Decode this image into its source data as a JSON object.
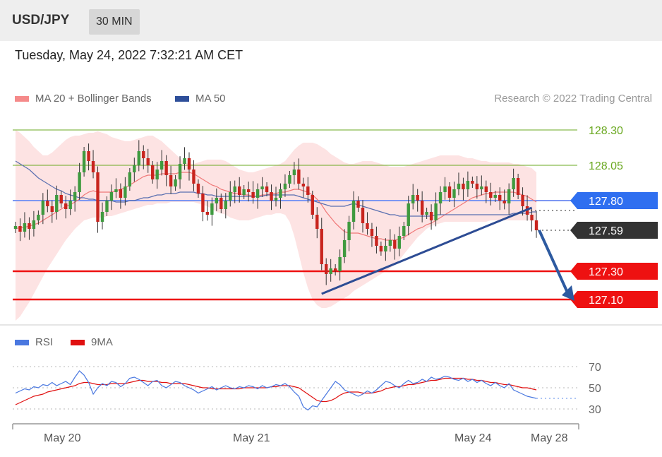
{
  "header": {
    "symbol": "USD/JPY",
    "timeframe": "30 MIN"
  },
  "timestamp": "Tuesday, May 24, 2022 7:32:21 AM CET",
  "legend": {
    "ma20": "MA 20 + Bollinger Bands",
    "ma50": "MA 50",
    "credit": "Research © 2022 Trading Central",
    "rsi": "RSI",
    "rsi_ma": "9MA"
  },
  "chart_data": [
    {
      "type": "line",
      "title": "USD/JPY 30 MIN",
      "y_range": [
        126.95,
        128.42
      ],
      "levels": [
        {
          "value": 128.3,
          "label": "128.30",
          "color": "#6aa820",
          "kind": "resistance-thin"
        },
        {
          "value": 128.05,
          "label": "128.05",
          "color": "#6aa820",
          "kind": "resistance-thin"
        },
        {
          "value": 127.8,
          "label": "127.80",
          "color": "#2f6ff0",
          "kind": "pivot"
        },
        {
          "value": 127.59,
          "label": "127.59",
          "color": "#333333",
          "kind": "last-price"
        },
        {
          "value": 127.3,
          "label": "127.30",
          "color": "#ee1111",
          "kind": "support"
        },
        {
          "value": 127.1,
          "label": "127.10",
          "color": "#ee1111",
          "kind": "support"
        }
      ],
      "close": [
        127.62,
        127.58,
        127.64,
        127.6,
        127.66,
        127.7,
        127.8,
        127.76,
        127.72,
        127.84,
        127.78,
        127.74,
        127.8,
        127.86,
        128.0,
        128.15,
        128.08,
        128.0,
        127.65,
        127.72,
        127.8,
        127.86,
        127.88,
        127.82,
        127.9,
        128.0,
        128.05,
        128.15,
        128.1,
        128.05,
        127.95,
        128.02,
        128.08,
        127.98,
        127.9,
        127.95,
        128.06,
        128.1,
        128.02,
        127.92,
        127.85,
        127.72,
        127.7,
        127.78,
        127.82,
        127.74,
        127.8,
        127.86,
        127.9,
        127.84,
        127.88,
        127.86,
        127.82,
        127.88,
        127.9,
        127.86,
        127.8,
        127.82,
        127.88,
        127.92,
        127.98,
        128.02,
        127.92,
        127.9,
        127.84,
        127.7,
        127.6,
        127.35,
        127.28,
        127.32,
        127.3,
        127.4,
        127.52,
        127.65,
        127.8,
        127.75,
        127.64,
        127.6,
        127.55,
        127.48,
        127.44,
        127.48,
        127.52,
        127.46,
        127.55,
        127.62,
        127.78,
        127.84,
        127.8,
        127.7,
        127.72,
        127.66,
        127.78,
        127.86,
        127.9,
        127.82,
        127.88,
        127.92,
        127.88,
        127.94,
        127.92,
        127.88,
        127.9,
        127.86,
        127.82,
        127.84,
        127.8,
        127.78,
        127.88,
        127.96,
        127.84,
        127.76,
        127.7,
        127.66,
        127.59
      ],
      "ma50": [
        128.08,
        128.06,
        128.04,
        128.02,
        127.99,
        127.96,
        127.94,
        127.92,
        127.9,
        127.88,
        127.87,
        127.85,
        127.84,
        127.83,
        127.82,
        127.82,
        127.81,
        127.81,
        127.8,
        127.8,
        127.8,
        127.8,
        127.79,
        127.79,
        127.79,
        127.8,
        127.8,
        127.81,
        127.82,
        127.82,
        127.83,
        127.84,
        127.84,
        127.85,
        127.85,
        127.85,
        127.86,
        127.86,
        127.86,
        127.86,
        127.85,
        127.85,
        127.84,
        127.84,
        127.83,
        127.83,
        127.83,
        127.83,
        127.83,
        127.83,
        127.83,
        127.83,
        127.83,
        127.83,
        127.83,
        127.84,
        127.84,
        127.84,
        127.84,
        127.84,
        127.84,
        127.84,
        127.83,
        127.82,
        127.81,
        127.8,
        127.79,
        127.78,
        127.77,
        127.76,
        127.76,
        127.76,
        127.76,
        127.77,
        127.78,
        127.77,
        127.76,
        127.75,
        127.74,
        127.73,
        127.72,
        127.71,
        127.7,
        127.7,
        127.69,
        127.69,
        127.69,
        127.69,
        127.69,
        127.69,
        127.69,
        127.69,
        127.7,
        127.7,
        127.7,
        127.7,
        127.7,
        127.7,
        127.7,
        127.7,
        127.7,
        127.7,
        127.7,
        127.7,
        127.7,
        127.7,
        127.7,
        127.7,
        127.7,
        127.71,
        127.71,
        127.71,
        127.71,
        127.72,
        127.72
      ],
      "ma20": [
        127.6,
        127.61,
        127.61,
        127.62,
        127.63,
        127.64,
        127.66,
        127.68,
        127.7,
        127.72,
        127.74,
        127.76,
        127.77,
        127.79,
        127.81,
        127.84,
        127.86,
        127.87,
        127.86,
        127.86,
        127.86,
        127.86,
        127.87,
        127.88,
        127.89,
        127.91,
        127.93,
        127.95,
        127.97,
        127.98,
        127.98,
        127.98,
        127.99,
        127.99,
        127.99,
        127.99,
        128.0,
        128.0,
        128.0,
        127.99,
        127.97,
        127.95,
        127.93,
        127.91,
        127.9,
        127.88,
        127.87,
        127.86,
        127.85,
        127.85,
        127.84,
        127.84,
        127.83,
        127.83,
        127.84,
        127.84,
        127.85,
        127.85,
        127.86,
        127.86,
        127.87,
        127.88,
        127.88,
        127.87,
        127.86,
        127.84,
        127.81,
        127.77,
        127.72,
        127.68,
        127.64,
        127.61,
        127.58,
        127.57,
        127.57,
        127.57,
        127.56,
        127.55,
        127.54,
        127.53,
        127.53,
        127.52,
        127.52,
        127.52,
        127.53,
        127.54,
        127.56,
        127.58,
        127.6,
        127.61,
        127.63,
        127.64,
        127.66,
        127.68,
        127.7,
        127.72,
        127.74,
        127.76,
        127.78,
        127.8,
        127.82,
        127.83,
        127.84,
        127.85,
        127.85,
        127.86,
        127.86,
        127.86,
        127.86,
        127.86,
        127.85,
        127.84,
        127.83,
        127.81,
        127.79
      ],
      "bb_upper": [
        128.3,
        128.28,
        128.25,
        128.22,
        128.18,
        128.15,
        128.12,
        128.12,
        128.14,
        128.17,
        128.2,
        128.23,
        128.25,
        128.26,
        128.26,
        128.27,
        128.28,
        128.28,
        128.29,
        128.28,
        128.27,
        128.25,
        128.24,
        128.23,
        128.22,
        128.22,
        128.23,
        128.24,
        128.25,
        128.26,
        128.26,
        128.24,
        128.22,
        128.19,
        128.16,
        128.13,
        128.1,
        128.07,
        128.06,
        128.06,
        128.07,
        128.08,
        128.09,
        128.09,
        128.09,
        128.09,
        128.08,
        128.06,
        128.04,
        128.02,
        128.01,
        128.0,
        128.0,
        128.01,
        128.02,
        128.03,
        128.04,
        128.05,
        128.06,
        128.08,
        128.12,
        128.16,
        128.19,
        128.21,
        128.21,
        128.21,
        128.2,
        128.18,
        128.16,
        128.13,
        128.11,
        128.09,
        128.07,
        128.06,
        128.06,
        128.07,
        128.08,
        128.08,
        128.08,
        128.07,
        128.06,
        128.05,
        128.04,
        128.04,
        128.04,
        128.04,
        128.05,
        128.06,
        128.07,
        128.08,
        128.09,
        128.1,
        128.11,
        128.12,
        128.12,
        128.12,
        128.12,
        128.12,
        128.11,
        128.1,
        128.1,
        128.09,
        128.08,
        128.08,
        128.07,
        128.07,
        128.07,
        128.07,
        128.07,
        128.06,
        128.06,
        128.05,
        128.04,
        128.03,
        128.0
      ],
      "bb_lower": [
        126.95,
        126.98,
        127.03,
        127.08,
        127.14,
        127.2,
        127.26,
        127.32,
        127.37,
        127.42,
        127.47,
        127.52,
        127.56,
        127.6,
        127.63,
        127.66,
        127.67,
        127.68,
        127.68,
        127.68,
        127.69,
        127.69,
        127.7,
        127.71,
        127.72,
        127.73,
        127.74,
        127.75,
        127.76,
        127.77,
        127.77,
        127.78,
        127.78,
        127.78,
        127.79,
        127.79,
        127.79,
        127.79,
        127.79,
        127.79,
        127.78,
        127.77,
        127.76,
        127.74,
        127.72,
        127.71,
        127.7,
        127.68,
        127.67,
        127.66,
        127.66,
        127.66,
        127.67,
        127.68,
        127.69,
        127.7,
        127.7,
        127.71,
        127.71,
        127.7,
        127.65,
        127.55,
        127.42,
        127.29,
        127.18,
        127.1,
        127.06,
        127.04,
        127.04,
        127.05,
        127.07,
        127.09,
        127.11,
        127.13,
        127.16,
        127.18,
        127.2,
        127.22,
        127.24,
        127.26,
        127.28,
        127.3,
        127.32,
        127.35,
        127.38,
        127.42,
        127.46,
        127.5,
        127.54,
        127.57,
        127.6,
        127.62,
        127.63,
        127.64,
        127.65,
        127.65,
        127.65,
        127.65,
        127.65,
        127.65,
        127.65,
        127.65,
        127.65,
        127.65,
        127.66,
        127.66,
        127.66,
        127.66,
        127.66,
        127.66,
        127.66,
        127.66,
        127.66,
        127.66,
        127.66
      ],
      "trendline": {
        "from_index": 67,
        "from_value": 127.14,
        "to_index": 113,
        "to_value": 127.75
      },
      "forecast_arrow": {
        "from_value": 127.59,
        "to_value": 127.1
      },
      "x_ticks": [
        "May 20",
        "May 21",
        "May 24",
        "May 28"
      ]
    },
    {
      "type": "line",
      "title": "RSI",
      "y_range": [
        20,
        80
      ],
      "y_ticks": [
        "70",
        "50",
        "30"
      ],
      "rsi": [
        45,
        47,
        49,
        48,
        51,
        50,
        53,
        52,
        55,
        52,
        54,
        56,
        53,
        60,
        66,
        62,
        55,
        44,
        50,
        54,
        52,
        56,
        55,
        51,
        54,
        59,
        60,
        58,
        55,
        52,
        56,
        57,
        52,
        50,
        53,
        56,
        55,
        52,
        50,
        48,
        45,
        47,
        49,
        51,
        48,
        50,
        52,
        50,
        49,
        51,
        50,
        52,
        51,
        49,
        52,
        50,
        51,
        53,
        52,
        54,
        51,
        46,
        42,
        32,
        29,
        33,
        32,
        38,
        44,
        50,
        56,
        53,
        48,
        46,
        44,
        42,
        44,
        47,
        45,
        48,
        52,
        56,
        55,
        52,
        50,
        54,
        57,
        54,
        55,
        58,
        56,
        60,
        58,
        59,
        61,
        60,
        58,
        57,
        59,
        56,
        58,
        55,
        57,
        54,
        52,
        55,
        52,
        50,
        54,
        48,
        46,
        44,
        42,
        41,
        40
      ],
      "rsi_9ma": [
        34,
        36,
        38,
        40,
        42,
        43,
        44,
        46,
        47,
        48,
        49,
        50,
        51,
        52,
        54,
        55,
        55,
        54,
        53,
        53,
        53,
        54,
        54,
        54,
        54,
        55,
        56,
        57,
        57,
        56,
        56,
        56,
        55,
        55,
        54,
        54,
        54,
        54,
        53,
        52,
        51,
        50,
        50,
        49,
        49,
        49,
        49,
        49,
        49,
        49,
        50,
        50,
        50,
        50,
        50,
        50,
        51,
        51,
        52,
        52,
        52,
        51,
        50,
        47,
        44,
        41,
        38,
        37,
        37,
        38,
        40,
        43,
        45,
        46,
        46,
        46,
        45,
        45,
        45,
        46,
        47,
        49,
        50,
        51,
        51,
        52,
        53,
        53,
        54,
        55,
        56,
        57,
        57,
        58,
        59,
        59,
        59,
        59,
        59,
        58,
        58,
        57,
        57,
        56,
        55,
        55,
        54,
        53,
        53,
        52,
        51,
        50,
        50,
        49,
        48
      ]
    }
  ]
}
